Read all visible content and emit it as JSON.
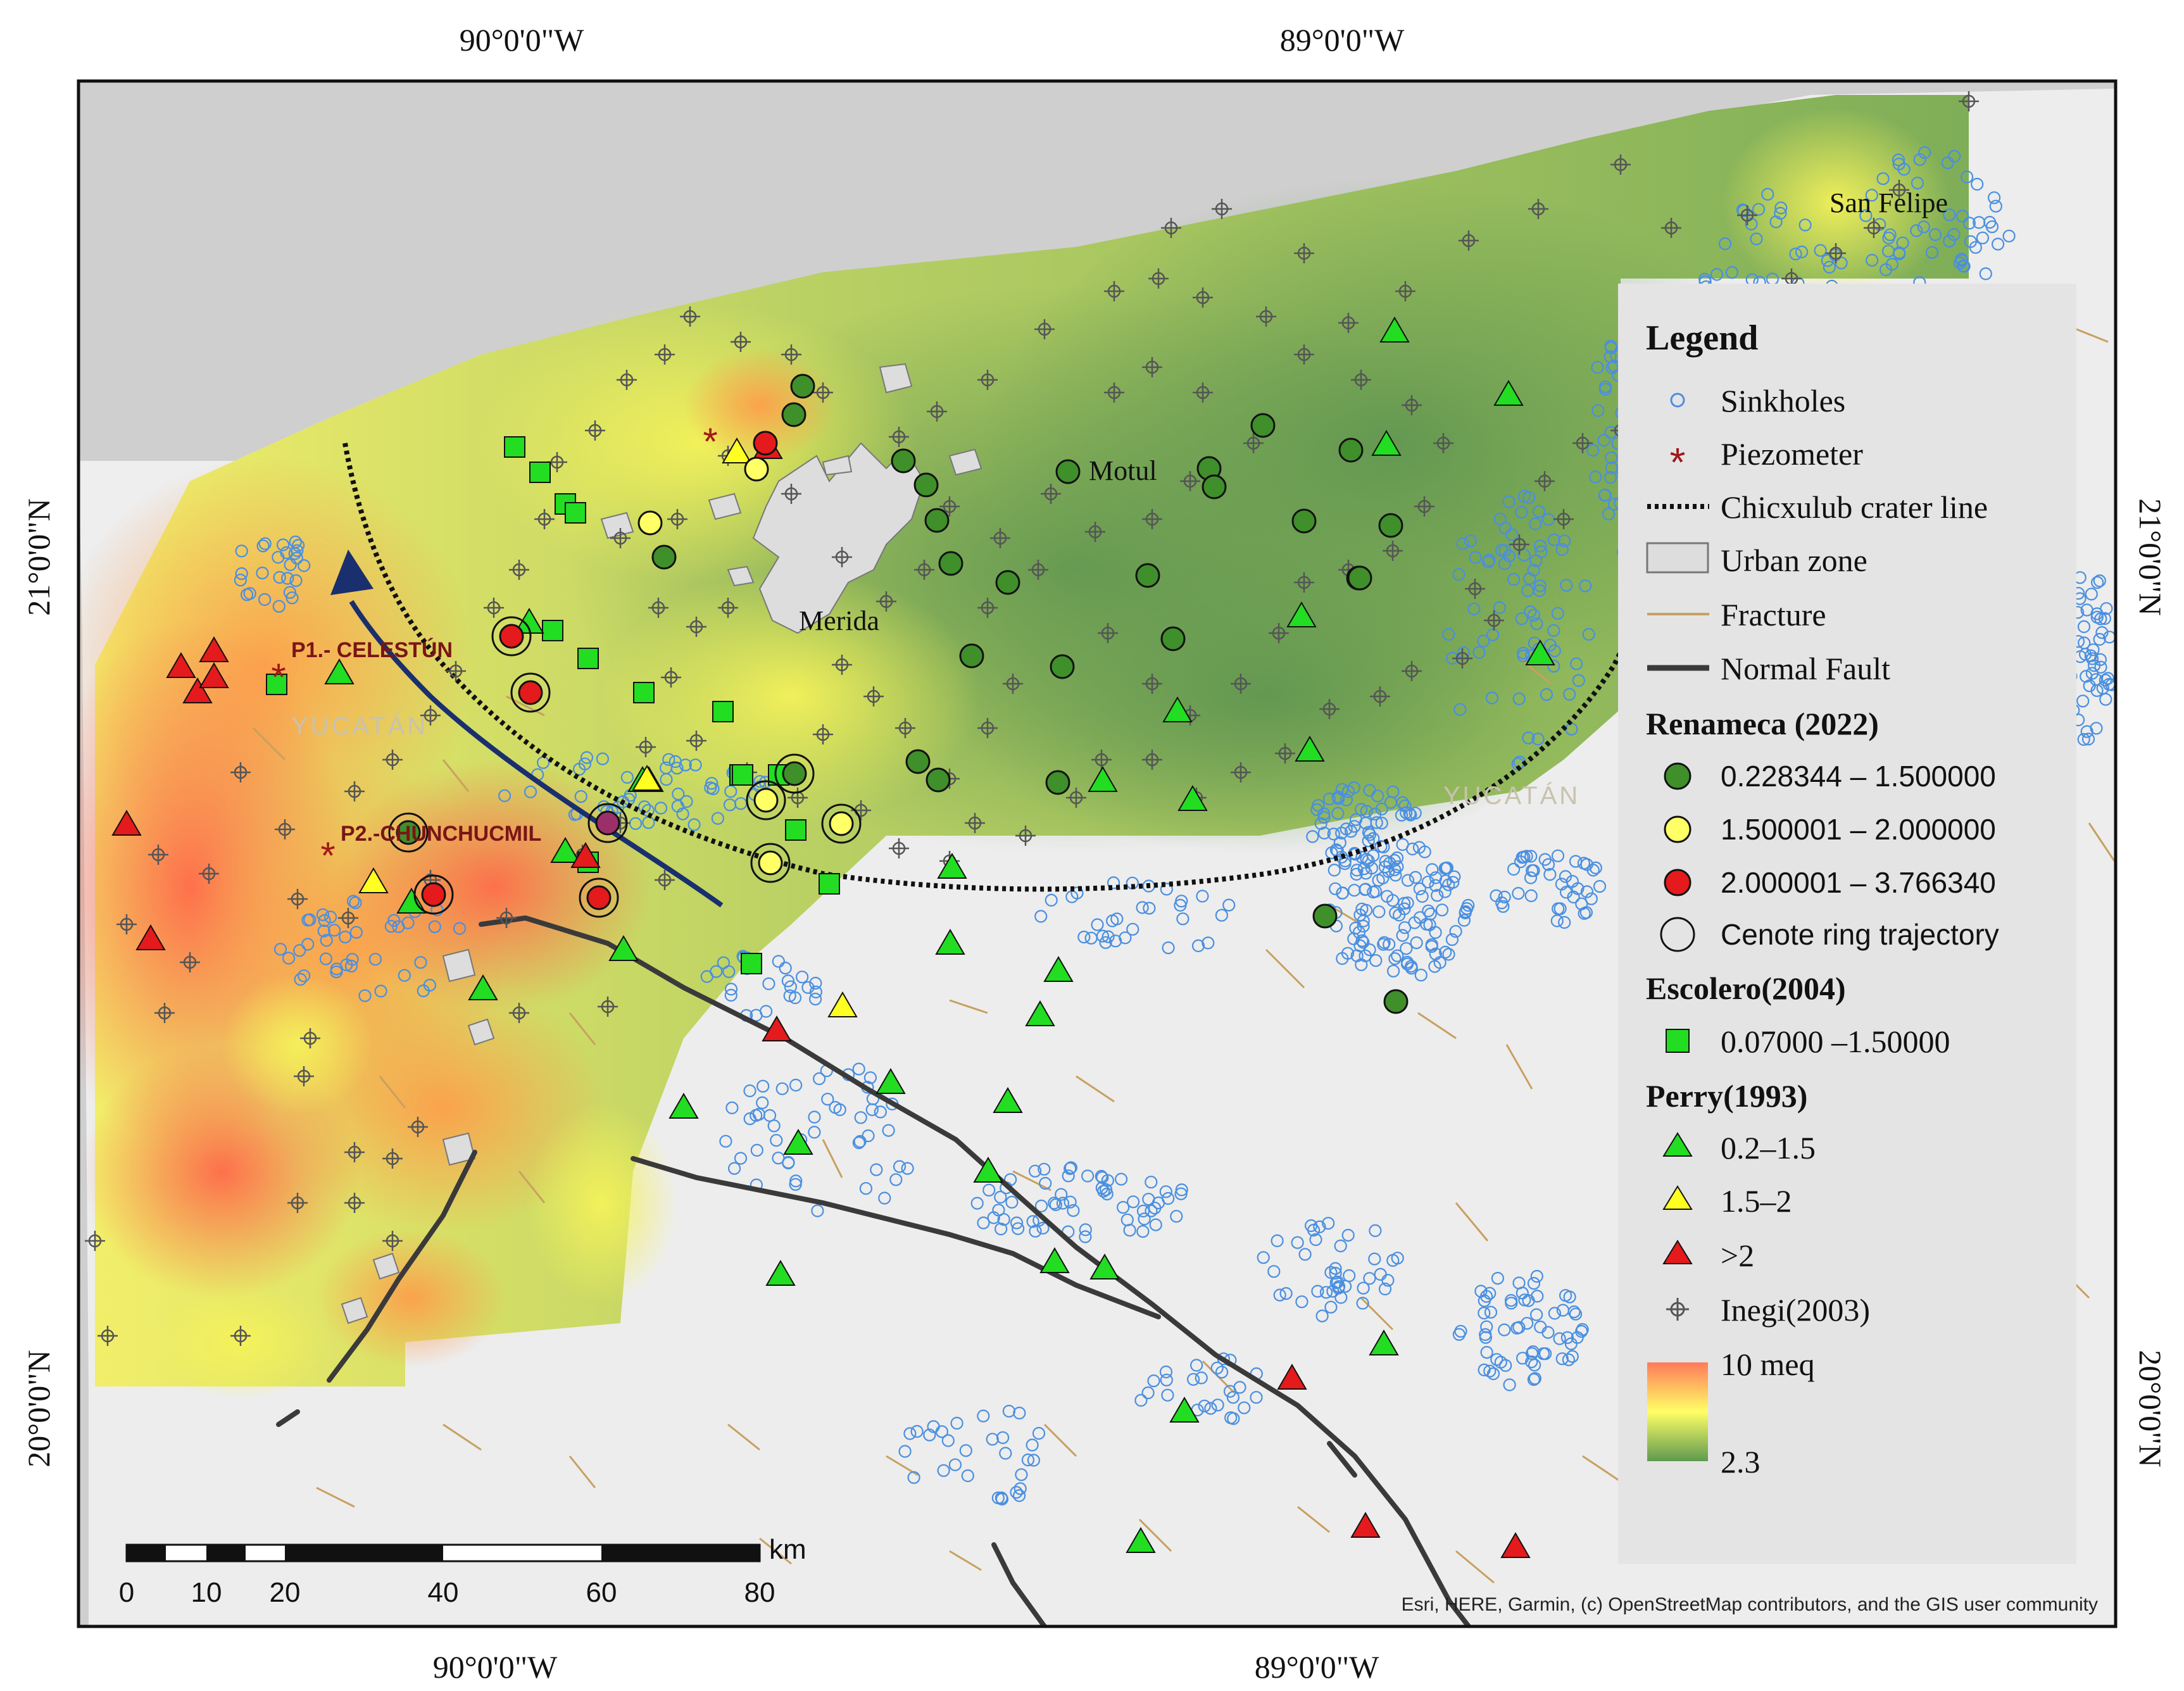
{
  "coords": {
    "lon_a": "90°0'0\"W",
    "lon_b": "89°0'0\"W",
    "lat_a": "21°0'0\"N",
    "lat_b": "20°0'0\"N"
  },
  "places": {
    "san_felipe": "San Felipe",
    "motul": "Motul",
    "merida": "Merida",
    "p1": "P1.- CELESTÚN",
    "p2": "P2.-CHUNCHUCMIL",
    "state_watermark_1": "YUCATÁN",
    "state_watermark_2": "YUCATÁN"
  },
  "legend": {
    "title": "Legend",
    "items": {
      "sinkholes": "Sinkholes",
      "piezometer": "Piezometer",
      "crater": "Chicxulub crater line",
      "urban": "Urban zone",
      "fracture": "Fracture",
      "fault": "Normal Fault"
    },
    "renameca": {
      "title": "Renameca (2022)",
      "c1": "0.228344 – 1.500000",
      "c2": "1.500001 – 2.000000",
      "c3": "2.000001 – 3.766340",
      "ring": "Cenote ring trajectory"
    },
    "escolero": {
      "title": "Escolero(2004)",
      "c1": "0.07000 –1.50000"
    },
    "perry": {
      "title": "Perry(1993)",
      "c1": "0.2–1.5",
      "c2": "1.5–2",
      "c3": ">2"
    },
    "inegi": "Inegi(2003)",
    "ramp_high": "10 meq",
    "ramp_low": "2.3"
  },
  "scale": {
    "unit": "km",
    "ticks": [
      "0",
      "10",
      "20",
      "40",
      "60",
      "80"
    ]
  },
  "attribution": "Esri, HERE, Garmin, (c) OpenStreetMap contributors, and the GIS user community",
  "colors": {
    "renameca_green": "#3f8f2b",
    "renameca_yellow": "#ffff66",
    "renameca_red": "#e41a1c",
    "escolero_green": "#22dd22",
    "perry_green": "#22dd22",
    "perry_yellow": "#ffff22",
    "perry_red": "#e41a1c",
    "piezometer": "#a01818",
    "arrow": "#1a2f6e",
    "sinkhole": "#4a8fe0",
    "fracture": "#c8a060",
    "fault": "#3a3a3a",
    "ramp_high": "#ff7a5a",
    "ramp_mid": "#ffff66",
    "ramp_low": "#5f9a50"
  }
}
